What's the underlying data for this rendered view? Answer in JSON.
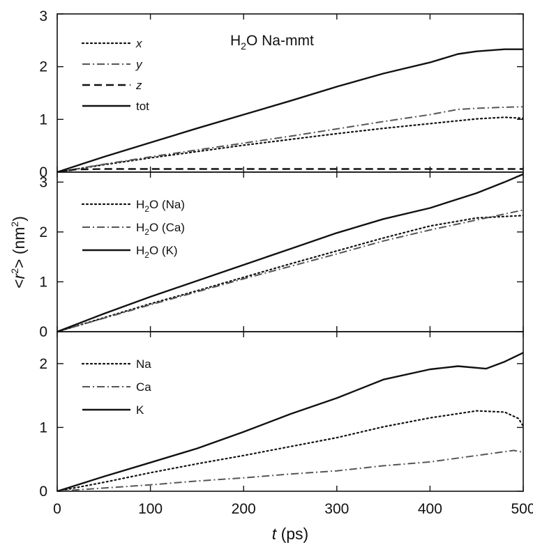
{
  "chart_data": [
    {
      "type": "line",
      "panel": "top",
      "annotation": {
        "text": "H",
        "sub": "2",
        "rest": "O Na-mmt"
      },
      "xlim": [
        0,
        500
      ],
      "ylim": [
        0,
        3
      ],
      "yticks": [
        0,
        1,
        2,
        3
      ],
      "legend_placement": "top-left",
      "series": [
        {
          "name": "x",
          "italic": true,
          "dash": "dotted",
          "color": "#111111",
          "x": [
            0,
            50,
            100,
            150,
            200,
            250,
            300,
            350,
            400,
            450,
            480,
            500
          ],
          "y": [
            0,
            0.14,
            0.27,
            0.39,
            0.51,
            0.62,
            0.73,
            0.83,
            0.92,
            1.01,
            1.04,
            1.02
          ]
        },
        {
          "name": "y",
          "italic": true,
          "dash": "dashdot",
          "color": "#555555",
          "x": [
            0,
            50,
            100,
            150,
            200,
            250,
            300,
            350,
            400,
            430,
            450,
            480,
            500
          ],
          "y": [
            0,
            0.15,
            0.29,
            0.42,
            0.55,
            0.68,
            0.82,
            0.96,
            1.09,
            1.19,
            1.21,
            1.23,
            1.24
          ]
        },
        {
          "name": "z",
          "italic": true,
          "dash": "dashed",
          "color": "#111111",
          "x": [
            0,
            20,
            50,
            100,
            200,
            300,
            400,
            500
          ],
          "y": [
            0,
            0.05,
            0.06,
            0.06,
            0.06,
            0.06,
            0.06,
            0.06
          ]
        },
        {
          "name": "tot",
          "italic": false,
          "dash": "solid",
          "color": "#111111",
          "x": [
            0,
            50,
            100,
            150,
            200,
            250,
            300,
            350,
            400,
            430,
            450,
            480,
            500
          ],
          "y": [
            0,
            0.29,
            0.56,
            0.83,
            1.09,
            1.35,
            1.62,
            1.87,
            2.08,
            2.24,
            2.29,
            2.33,
            2.33
          ]
        }
      ]
    },
    {
      "type": "line",
      "panel": "middle",
      "xlim": [
        0,
        500
      ],
      "ylim": [
        0,
        3.2
      ],
      "yticks": [
        0,
        1,
        2,
        3
      ],
      "legend_placement": "top-left",
      "series": [
        {
          "name": "H2O (Na)",
          "label_parts": [
            "H",
            "2",
            "O (Na)"
          ],
          "dash": "dotted",
          "color": "#111111",
          "x": [
            0,
            50,
            100,
            150,
            200,
            250,
            300,
            350,
            400,
            450,
            500
          ],
          "y": [
            0,
            0.28,
            0.56,
            0.82,
            1.09,
            1.36,
            1.62,
            1.88,
            2.12,
            2.28,
            2.33
          ]
        },
        {
          "name": "H2O (Ca)",
          "label_parts": [
            "H",
            "2",
            "O (Ca)"
          ],
          "dash": "dashdot",
          "color": "#555555",
          "x": [
            0,
            50,
            100,
            150,
            200,
            250,
            300,
            350,
            400,
            450,
            500
          ],
          "y": [
            0,
            0.27,
            0.54,
            0.8,
            1.06,
            1.31,
            1.56,
            1.82,
            2.04,
            2.24,
            2.44
          ]
        },
        {
          "name": "H2O (K)",
          "label_parts": [
            "H",
            "2",
            "O (K)"
          ],
          "dash": "solid",
          "color": "#111111",
          "x": [
            0,
            50,
            100,
            150,
            200,
            250,
            300,
            350,
            400,
            450,
            480,
            500
          ],
          "y": [
            0,
            0.36,
            0.7,
            1.02,
            1.34,
            1.66,
            1.98,
            2.26,
            2.48,
            2.78,
            3.0,
            3.16
          ]
        }
      ]
    },
    {
      "type": "line",
      "panel": "bottom",
      "xlim": [
        0,
        500
      ],
      "xticks": [
        0,
        100,
        200,
        300,
        400,
        500
      ],
      "ylim": [
        0,
        2.5
      ],
      "yticks": [
        0,
        1,
        2
      ],
      "legend_placement": "top-left",
      "series": [
        {
          "name": "Na",
          "dash": "dotted",
          "color": "#111111",
          "x": [
            0,
            50,
            100,
            150,
            200,
            250,
            300,
            350,
            400,
            450,
            480,
            495,
            500
          ],
          "y": [
            0,
            0.14,
            0.29,
            0.43,
            0.56,
            0.7,
            0.84,
            1.01,
            1.15,
            1.26,
            1.24,
            1.14,
            1.02
          ]
        },
        {
          "name": "Ca",
          "dash": "dashdot",
          "color": "#555555",
          "x": [
            0,
            50,
            100,
            150,
            200,
            250,
            300,
            350,
            400,
            450,
            490,
            500
          ],
          "y": [
            0,
            0.05,
            0.1,
            0.16,
            0.21,
            0.27,
            0.32,
            0.4,
            0.46,
            0.56,
            0.64,
            0.61
          ]
        },
        {
          "name": "K",
          "dash": "solid",
          "color": "#111111",
          "x": [
            0,
            50,
            100,
            150,
            200,
            250,
            300,
            350,
            400,
            430,
            460,
            480,
            500
          ],
          "y": [
            0,
            0.23,
            0.45,
            0.67,
            0.93,
            1.21,
            1.46,
            1.75,
            1.91,
            1.96,
            1.92,
            2.03,
            2.17
          ]
        }
      ]
    }
  ],
  "axes": {
    "xlabel": {
      "italic": "t",
      "rest": " (ps)"
    },
    "ylabel": {
      "before": "<",
      "italic": "r",
      "sup": "2",
      "after": "> (nm",
      "sup2": "2",
      "end": ")"
    }
  }
}
